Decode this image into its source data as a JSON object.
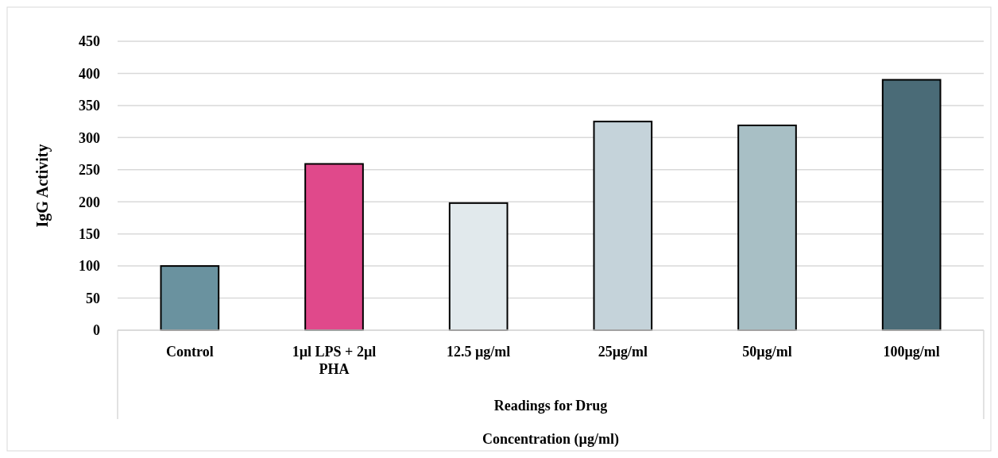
{
  "chart_data": {
    "type": "bar",
    "xlabel": "Concentration (µg/ml)",
    "ylabel": "IgG Activity",
    "annotations": [
      "Readings for Drug"
    ],
    "categories": [
      "Control",
      "1µl LPS + 2µl PHA",
      "12.5 µg/ml",
      "25µg/ml",
      "50µg/ml",
      "100µg/ml"
    ],
    "values": [
      100,
      259,
      198,
      325,
      319,
      390
    ],
    "colors": [
      "#6a929f",
      "#e0498b",
      "#e1e9ec",
      "#c5d3da",
      "#a8bfc5",
      "#4a6b77"
    ],
    "ylim": [
      0,
      450
    ],
    "yticks": [
      0,
      50,
      100,
      150,
      200,
      250,
      300,
      350,
      400,
      450
    ],
    "grid": "y"
  }
}
